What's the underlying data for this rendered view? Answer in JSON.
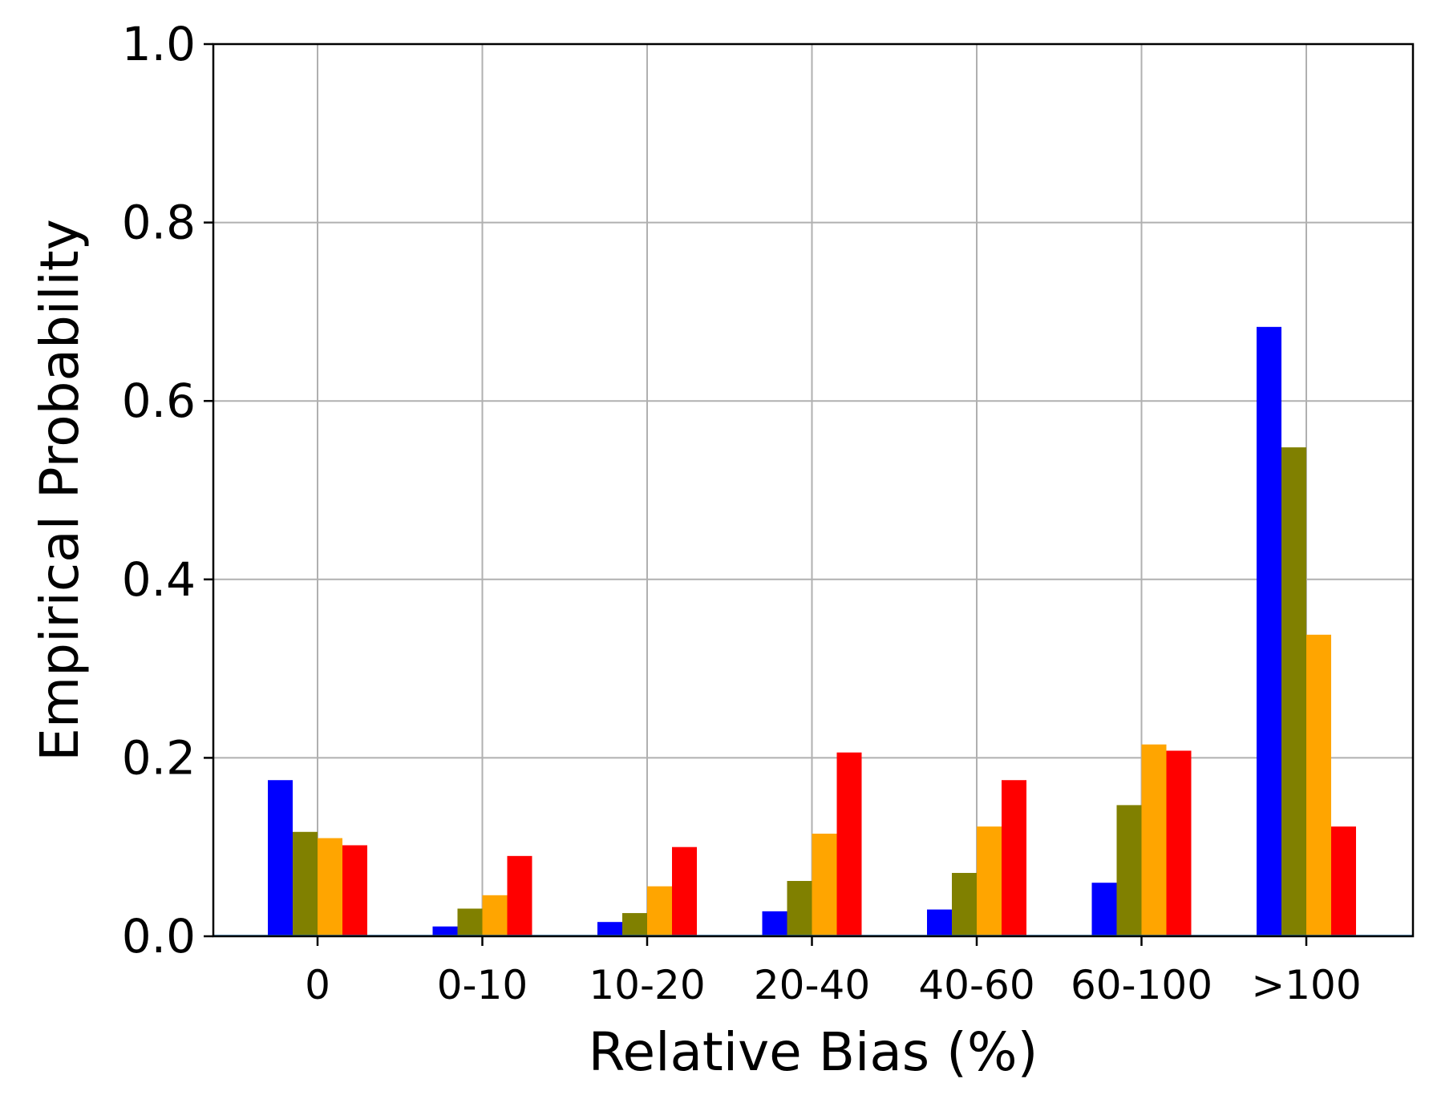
{
  "colors": {
    "grid": "#b0b0b0",
    "axis": "#000000",
    "baseline": "#1f77b4"
  },
  "chart_data": {
    "type": "bar",
    "xlabel": "Relative Bias (%)",
    "ylabel": "Empirical Probability",
    "ylim": [
      0,
      1.0
    ],
    "yticks": [
      0.0,
      0.2,
      0.4,
      0.6,
      0.8,
      1.0
    ],
    "ytick_labels": [
      "0.0",
      "0.2",
      "0.4",
      "0.6",
      "0.8",
      "1.0"
    ],
    "categories": [
      "0",
      "0-10",
      "10-20",
      "20-40",
      "40-60",
      "60-100",
      ">100"
    ],
    "grid": true,
    "legend": "none",
    "series": [
      {
        "color": "#0000ff",
        "values": [
          0.175,
          0.011,
          0.016,
          0.028,
          0.03,
          0.06,
          0.683
        ]
      },
      {
        "color": "#808000",
        "values": [
          0.117,
          0.031,
          0.026,
          0.062,
          0.071,
          0.147,
          0.548
        ]
      },
      {
        "color": "#ffa500",
        "values": [
          0.11,
          0.046,
          0.056,
          0.115,
          0.123,
          0.215,
          0.338
        ]
      },
      {
        "color": "#ff0000",
        "values": [
          0.102,
          0.09,
          0.1,
          0.206,
          0.175,
          0.208,
          0.123
        ]
      }
    ]
  }
}
